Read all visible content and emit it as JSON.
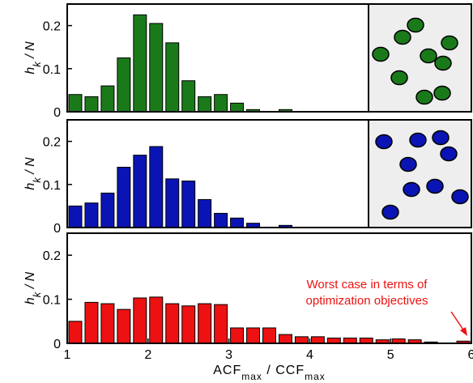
{
  "chart_data": [
    {
      "type": "histogram",
      "ylabel": [
        "h",
        "k",
        " / N"
      ],
      "color": "#1a7a1a",
      "bins": [
        1,
        1.2,
        1.4,
        1.6,
        1.8,
        2,
        2.2,
        2.4,
        2.6,
        2.8,
        3,
        3.2,
        3.4,
        3.6,
        3.8,
        4,
        4.2,
        4.4,
        4.6,
        4.8,
        5,
        5.2,
        5.4,
        5.6,
        5.8,
        6
      ],
      "values": [
        0.04,
        0.035,
        0.06,
        0.125,
        0.225,
        0.205,
        0.16,
        0.072,
        0.035,
        0.04,
        0.02,
        0.005,
        0,
        0.005,
        0,
        0,
        0,
        0,
        0,
        0,
        0,
        0,
        0,
        0,
        0
      ],
      "xlim": [
        1,
        6
      ],
      "ylim": [
        0,
        0.25
      ],
      "yticks": [
        0,
        0.1,
        0.2
      ]
    },
    {
      "type": "histogram",
      "ylabel": [
        "h",
        "k",
        " / N"
      ],
      "color": "#0a14b4",
      "bins": [
        1,
        1.2,
        1.4,
        1.6,
        1.8,
        2,
        2.2,
        2.4,
        2.6,
        2.8,
        3,
        3.2,
        3.4,
        3.6,
        3.8,
        4,
        4.2,
        4.4,
        4.6,
        4.8,
        5,
        5.2,
        5.4,
        5.6,
        5.8,
        6
      ],
      "values": [
        0.05,
        0.057,
        0.08,
        0.14,
        0.168,
        0.188,
        0.113,
        0.108,
        0.065,
        0.033,
        0.022,
        0.01,
        0,
        0.005,
        0,
        0,
        0,
        0,
        0,
        0,
        0,
        0,
        0,
        0,
        0
      ],
      "xlim": [
        1,
        6
      ],
      "ylim": [
        0,
        0.25
      ],
      "yticks": [
        0,
        0.1,
        0.2
      ]
    },
    {
      "type": "histogram",
      "ylabel": [
        "h",
        "k",
        " / N"
      ],
      "color": "#ee1111",
      "bins": [
        1,
        1.2,
        1.4,
        1.6,
        1.8,
        2,
        2.2,
        2.4,
        2.6,
        2.8,
        3,
        3.2,
        3.4,
        3.6,
        3.8,
        4,
        4.2,
        4.4,
        4.6,
        4.8,
        5,
        5.2,
        5.4,
        5.6,
        5.8,
        6
      ],
      "values": [
        0.05,
        0.093,
        0.09,
        0.077,
        0.103,
        0.105,
        0.09,
        0.085,
        0.09,
        0.088,
        0.035,
        0.035,
        0.035,
        0.02,
        0.015,
        0.015,
        0.012,
        0.012,
        0.012,
        0.008,
        0.01,
        0.008,
        0.003,
        0,
        0.005
      ],
      "xlim": [
        1,
        6
      ],
      "ylim": [
        0,
        0.25
      ],
      "yticks": [
        0,
        0.1,
        0.2
      ],
      "xticks": [
        1,
        2,
        3,
        4,
        5,
        6
      ],
      "xlabel": [
        "ACF",
        "max",
        " / CCF",
        "max"
      ],
      "annotation": [
        "Worst case in terms of",
        "optimization objectives"
      ]
    }
  ]
}
